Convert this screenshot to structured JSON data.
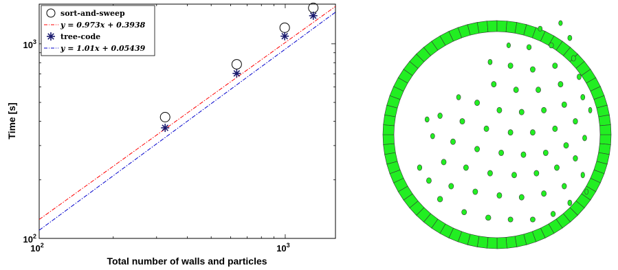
{
  "chart_data": {
    "type": "scatter",
    "title": "",
    "xlabel": "Total number of walls and particles",
    "ylabel": "Time [s]",
    "xscale": "log",
    "yscale": "log",
    "xlim": [
      100,
      1600
    ],
    "ylim": [
      100,
      1600
    ],
    "x_ticks": [
      {
        "base": "10",
        "exp": "2",
        "value": 100
      },
      {
        "base": "10",
        "exp": "3",
        "value": 1000
      }
    ],
    "y_ticks": [
      {
        "base": "10",
        "exp": "2",
        "value": 100
      },
      {
        "base": "10",
        "exp": "3",
        "value": 1000
      }
    ],
    "grid": false,
    "legend_position": "top-left",
    "series": [
      {
        "name": "sort-and-sweep",
        "kind": "marker",
        "marker": "circle",
        "color": "#000000",
        "x": [
          325,
          635,
          995,
          1300
        ],
        "y": [
          420,
          785,
          1210,
          1530
        ]
      },
      {
        "name": "y = 0.973x + 0.3938",
        "kind": "line",
        "style": "dashdot",
        "color": "#ff0000",
        "fit": {
          "slope": 0.973,
          "intercept": 0.3938
        }
      },
      {
        "name": "tree-code",
        "kind": "marker",
        "marker": "asterisk",
        "color": "#1a1a6e",
        "x": [
          325,
          635,
          995,
          1300
        ],
        "y": [
          370,
          705,
          1095,
          1395
        ]
      },
      {
        "name": "y = 1.01x + 0.05439",
        "kind": "line",
        "style": "dashdot",
        "color": "#0000cc",
        "fit": {
          "slope": 1.01,
          "intercept": 0.05439
        }
      }
    ]
  },
  "simulation": {
    "wall_color": "#22ee22",
    "particle_color": "#22ee22",
    "outline_color": "#333333",
    "wall_segments": 72,
    "particles": [
      [
        0.26,
        0.16,
        0.07,
        0.09
      ],
      [
        0.39,
        0.09,
        0.065,
        0.085
      ],
      [
        0.52,
        0.06,
        0.07,
        0.085
      ],
      [
        0.64,
        0.05,
        0.065,
        0.08
      ],
      [
        0.76,
        0.05,
        0.065,
        0.08
      ],
      [
        0.87,
        0.08,
        0.06,
        0.085
      ],
      [
        0.96,
        0.14,
        0.055,
        0.09
      ],
      [
        1.05,
        0.2,
        0.045,
        0.09
      ],
      [
        0.2,
        0.26,
        0.065,
        0.09
      ],
      [
        0.32,
        0.23,
        0.065,
        0.09
      ],
      [
        0.45,
        0.2,
        0.065,
        0.09
      ],
      [
        0.58,
        0.18,
        0.065,
        0.09
      ],
      [
        0.7,
        0.17,
        0.065,
        0.09
      ],
      [
        0.82,
        0.19,
        0.065,
        0.09
      ],
      [
        0.93,
        0.23,
        0.06,
        0.09
      ],
      [
        1.03,
        0.29,
        0.05,
        0.09
      ],
      [
        0.28,
        0.36,
        0.065,
        0.09
      ],
      [
        0.4,
        0.33,
        0.065,
        0.09
      ],
      [
        0.53,
        0.3,
        0.065,
        0.09
      ],
      [
        0.66,
        0.29,
        0.065,
        0.09
      ],
      [
        0.78,
        0.3,
        0.065,
        0.09
      ],
      [
        0.89,
        0.33,
        0.065,
        0.09
      ],
      [
        0.99,
        0.38,
        0.06,
        0.09
      ],
      [
        0.15,
        0.33,
        0.06,
        0.09
      ],
      [
        0.33,
        0.47,
        0.065,
        0.09
      ],
      [
        0.46,
        0.43,
        0.065,
        0.09
      ],
      [
        0.59,
        0.41,
        0.065,
        0.09
      ],
      [
        0.71,
        0.4,
        0.065,
        0.09
      ],
      [
        0.83,
        0.41,
        0.065,
        0.09
      ],
      [
        0.94,
        0.45,
        0.065,
        0.09
      ],
      [
        1.04,
        0.49,
        0.055,
        0.09
      ],
      [
        0.22,
        0.5,
        0.055,
        0.085
      ],
      [
        0.38,
        0.58,
        0.065,
        0.09
      ],
      [
        0.51,
        0.54,
        0.065,
        0.09
      ],
      [
        0.64,
        0.52,
        0.065,
        0.09
      ],
      [
        0.76,
        0.52,
        0.065,
        0.09
      ],
      [
        0.88,
        0.54,
        0.065,
        0.09
      ],
      [
        0.99,
        0.58,
        0.06,
        0.09
      ],
      [
        0.26,
        0.61,
        0.06,
        0.09
      ],
      [
        1.07,
        0.64,
        0.045,
        0.09
      ],
      [
        0.46,
        0.68,
        0.065,
        0.09
      ],
      [
        0.58,
        0.64,
        0.065,
        0.09
      ],
      [
        0.7,
        0.63,
        0.065,
        0.09
      ],
      [
        0.82,
        0.64,
        0.065,
        0.09
      ],
      [
        0.93,
        0.67,
        0.065,
        0.09
      ],
      [
        1.03,
        0.71,
        0.055,
        0.09
      ],
      [
        0.36,
        0.71,
        0.055,
        0.085
      ],
      [
        0.19,
        0.59,
        0.055,
        0.085
      ],
      [
        0.55,
        0.78,
        0.065,
        0.09
      ],
      [
        0.67,
        0.75,
        0.065,
        0.09
      ],
      [
        0.79,
        0.75,
        0.065,
        0.09
      ],
      [
        0.91,
        0.78,
        0.065,
        0.09
      ],
      [
        1.01,
        0.82,
        0.055,
        0.09
      ],
      [
        0.64,
        0.88,
        0.065,
        0.09
      ],
      [
        0.76,
        0.86,
        0.065,
        0.09
      ],
      [
        0.88,
        0.88,
        0.065,
        0.09
      ],
      [
        0.98,
        0.92,
        0.055,
        0.09
      ],
      [
        0.53,
        0.9,
        0.055,
        0.085
      ],
      [
        0.74,
        0.98,
        0.06,
        0.085
      ],
      [
        0.86,
        0.99,
        0.06,
        0.085
      ],
      [
        0.96,
        1.03,
        0.055,
        0.085
      ],
      [
        0.8,
        1.08,
        0.055,
        0.08
      ],
      [
        0.91,
        1.11,
        0.05,
        0.08
      ],
      [
        0.63,
        0.99,
        0.05,
        0.08
      ]
    ]
  }
}
